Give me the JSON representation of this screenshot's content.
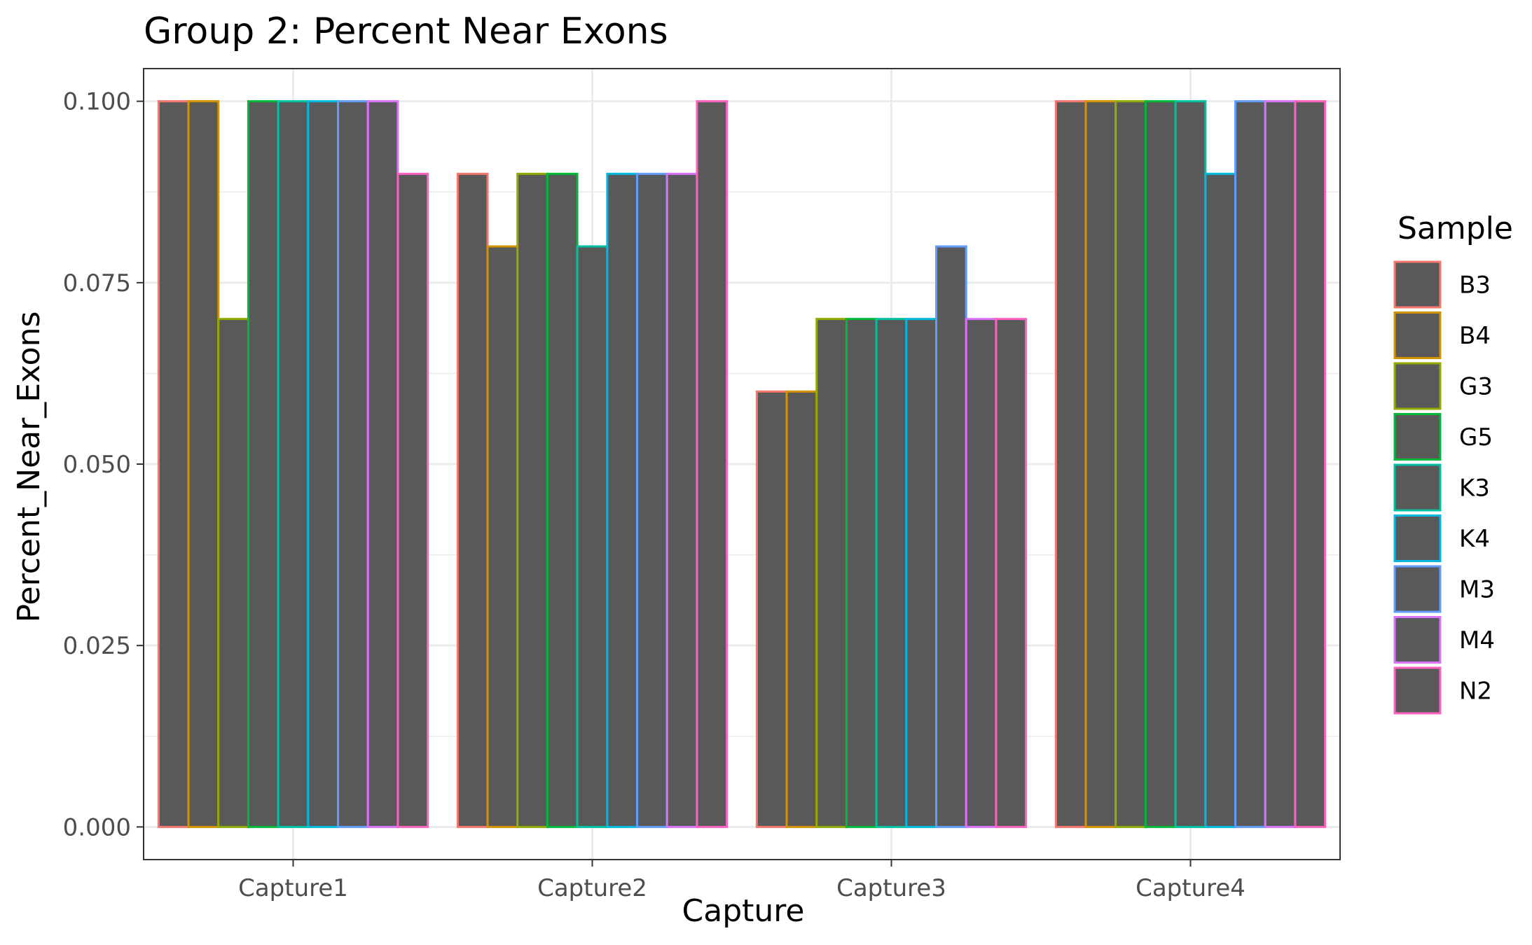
{
  "chart_data": {
    "type": "bar",
    "title": "Group 2: Percent Near Exons",
    "xlabel": "Capture",
    "ylabel": "Percent_Near_Exons",
    "categories": [
      "Capture1",
      "Capture2",
      "Capture3",
      "Capture4"
    ],
    "ylim": [
      -0.0045,
      0.1045
    ],
    "yticks": [
      "0.000",
      "0.025",
      "0.050",
      "0.075",
      "0.100"
    ],
    "grid": true,
    "bar_fill": "#595959",
    "legend": {
      "title": "Sample",
      "position": "right"
    },
    "series": [
      {
        "name": "B3",
        "color": "#F8766D",
        "values": [
          0.1,
          0.09,
          0.06,
          0.1
        ]
      },
      {
        "name": "B4",
        "color": "#D39200",
        "values": [
          0.1,
          0.08,
          0.06,
          0.1
        ]
      },
      {
        "name": "G3",
        "color": "#93AA00",
        "values": [
          0.07,
          0.09,
          0.07,
          0.1
        ]
      },
      {
        "name": "G5",
        "color": "#00BA38",
        "values": [
          0.1,
          0.09,
          0.07,
          0.1
        ]
      },
      {
        "name": "K3",
        "color": "#00C19F",
        "values": [
          0.1,
          0.08,
          0.07,
          0.1
        ]
      },
      {
        "name": "K4",
        "color": "#00B9E3",
        "values": [
          0.1,
          0.09,
          0.07,
          0.09
        ]
      },
      {
        "name": "M3",
        "color": "#619CFF",
        "values": [
          0.1,
          0.09,
          0.08,
          0.1
        ]
      },
      {
        "name": "M4",
        "color": "#DB72FB",
        "values": [
          0.1,
          0.09,
          0.07,
          0.1
        ]
      },
      {
        "name": "N2",
        "color": "#FF61C3",
        "values": [
          0.09,
          0.1,
          0.07,
          0.1
        ]
      }
    ]
  }
}
